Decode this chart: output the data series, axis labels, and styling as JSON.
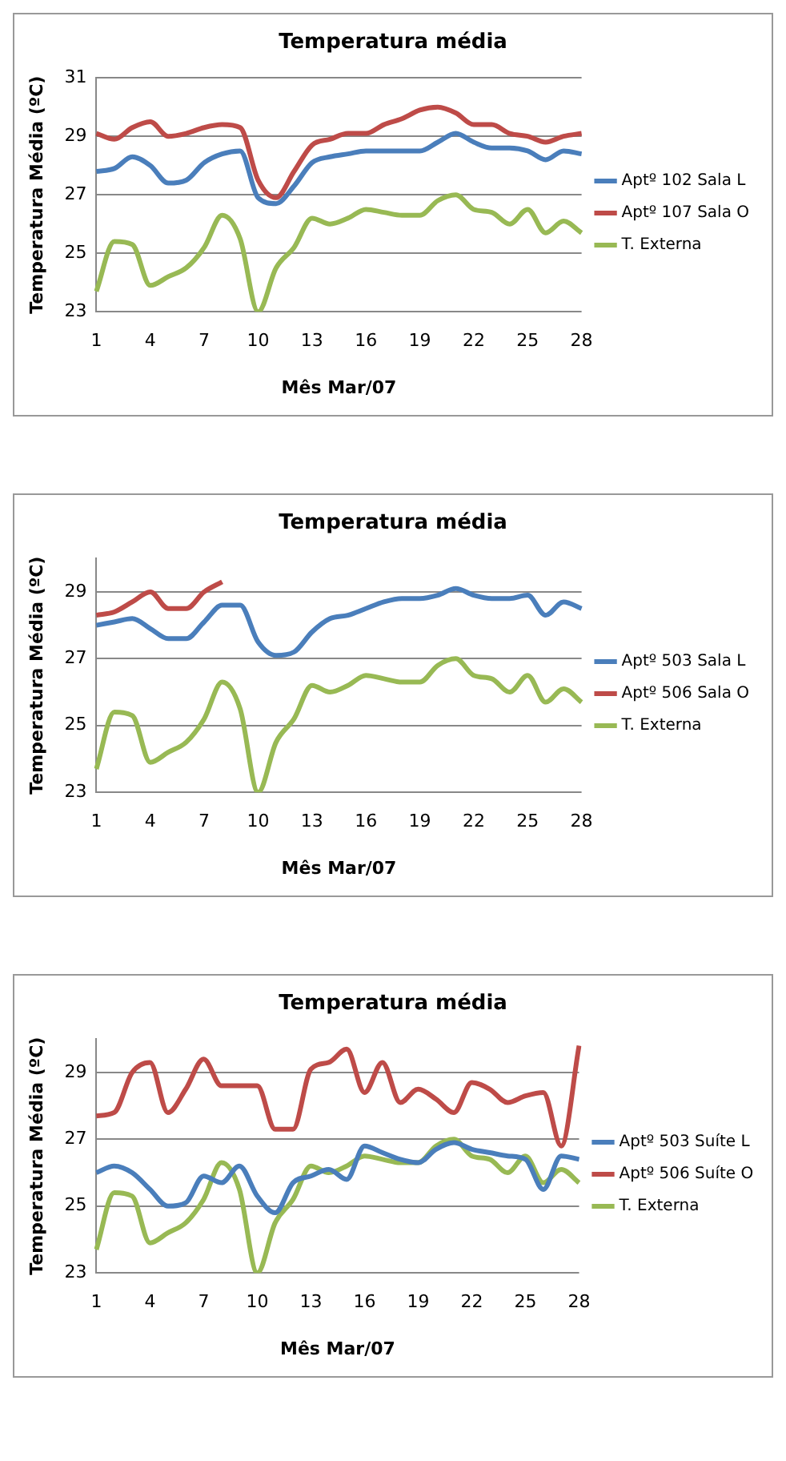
{
  "chart_data": [
    {
      "type": "line",
      "title": "Temperatura média",
      "xlabel": "Mês Mar/07",
      "ylabel": "Temperatura Média (ºC)",
      "categories": [
        "1",
        null,
        null,
        "4",
        null,
        null,
        "7",
        null,
        null,
        "10",
        null,
        null,
        "13",
        null,
        null,
        "16",
        null,
        null,
        "19",
        null,
        null,
        "22",
        null,
        null,
        "25",
        null,
        null,
        "28"
      ],
      "ylim": [
        23,
        31
      ],
      "yticks": [
        23,
        25,
        27,
        29,
        31
      ],
      "grid": "y",
      "legend": "right",
      "marker": "none",
      "series": [
        {
          "name": "Aptº 102 Sala L",
          "color": "#4a7ebb",
          "values": [
            27.8,
            27.9,
            28.3,
            28.0,
            27.4,
            27.5,
            28.1,
            28.4,
            28.5,
            26.9,
            26.7,
            27.3,
            28.1,
            28.3,
            28.4,
            28.5,
            28.5,
            28.5,
            28.5,
            28.8,
            29.1,
            28.8,
            28.6,
            28.6,
            28.5,
            28.2,
            28.5,
            28.4
          ]
        },
        {
          "name": "Aptº 107 Sala O",
          "color": "#be4b48",
          "values": [
            29.1,
            28.9,
            29.3,
            29.5,
            29.0,
            29.1,
            29.3,
            29.4,
            29.3,
            27.5,
            26.9,
            27.8,
            28.7,
            28.9,
            29.1,
            29.1,
            29.4,
            29.6,
            29.9,
            30.0,
            29.8,
            29.4,
            29.4,
            29.1,
            29.0,
            28.8,
            29.0,
            29.1
          ]
        },
        {
          "name": "T. Externa",
          "color": "#98b954",
          "values": [
            23.7,
            25.4,
            25.3,
            23.9,
            24.2,
            24.5,
            25.2,
            26.3,
            25.5,
            23.0,
            24.5,
            25.2,
            26.2,
            26.0,
            26.2,
            26.5,
            26.4,
            26.3,
            26.3,
            26.8,
            27.0,
            26.5,
            26.4,
            26.0,
            26.5,
            25.7,
            26.1,
            25.7
          ]
        }
      ]
    },
    {
      "type": "line",
      "title": "Temperatura média",
      "xlabel": "Mês Mar/07",
      "ylabel": "Temperatura Média (ºC)",
      "categories": [
        "1",
        null,
        null,
        "4",
        null,
        null,
        "7",
        null,
        null,
        "10",
        null,
        null,
        "13",
        null,
        null,
        "16",
        null,
        null,
        "19",
        null,
        null,
        "22",
        null,
        null,
        "25",
        null,
        null,
        "28"
      ],
      "ylim": [
        23,
        30
      ],
      "yticks": [
        23,
        25,
        27,
        29
      ],
      "grid": "y",
      "legend": "right",
      "marker": "none",
      "series": [
        {
          "name": "Aptº 503 Sala L",
          "color": "#4a7ebb",
          "values": [
            28.0,
            28.1,
            28.2,
            27.9,
            27.6,
            27.6,
            28.1,
            28.6,
            28.6,
            27.5,
            27.1,
            27.2,
            27.8,
            28.2,
            28.3,
            28.5,
            28.7,
            28.8,
            28.8,
            28.9,
            29.1,
            28.9,
            28.8,
            28.8,
            28.9,
            28.3,
            28.7,
            28.5
          ]
        },
        {
          "name": "Aptº 506 Sala O",
          "color": "#be4b48",
          "values": [
            28.3,
            28.4,
            28.7,
            29.0,
            28.5,
            28.5,
            29.0,
            29.3,
            null,
            null,
            null,
            null,
            null,
            null,
            null,
            null,
            null,
            null,
            null,
            null,
            null,
            null,
            null,
            null,
            null,
            null,
            null,
            null
          ]
        },
        {
          "name": "T. Externa",
          "color": "#98b954",
          "values": [
            23.7,
            25.4,
            25.3,
            23.9,
            24.2,
            24.5,
            25.2,
            26.3,
            25.5,
            23.0,
            24.5,
            25.2,
            26.2,
            26.0,
            26.2,
            26.5,
            26.4,
            26.3,
            26.3,
            26.8,
            27.0,
            26.5,
            26.4,
            26.0,
            26.5,
            25.7,
            26.1,
            25.7
          ]
        }
      ]
    },
    {
      "type": "line",
      "title": "Temperatura média",
      "xlabel": "Mês Mar/07",
      "ylabel": "Temperatura Média (ºC)",
      "categories": [
        "1",
        null,
        null,
        "4",
        null,
        null,
        "7",
        null,
        null,
        "10",
        null,
        null,
        "13",
        null,
        null,
        "16",
        null,
        null,
        "19",
        null,
        null,
        "22",
        null,
        null,
        "25",
        null,
        null,
        "28"
      ],
      "ylim": [
        23,
        30
      ],
      "yticks": [
        23,
        25,
        27,
        29
      ],
      "grid": "y",
      "legend": "right",
      "marker": "none",
      "series": [
        {
          "name": "Aptº 503 Suíte L",
          "color": "#4a7ebb",
          "values": [
            26.0,
            26.2,
            26.0,
            25.5,
            25.0,
            25.1,
            25.9,
            25.7,
            26.2,
            25.3,
            24.8,
            25.7,
            25.9,
            26.1,
            25.8,
            26.8,
            26.6,
            26.4,
            26.3,
            26.7,
            26.9,
            26.7,
            26.6,
            26.5,
            26.4,
            25.5,
            26.5,
            26.4
          ]
        },
        {
          "name": "Aptº 506 Suíte O",
          "color": "#be4b48",
          "values": [
            27.7,
            27.8,
            29.0,
            29.3,
            27.8,
            28.5,
            29.4,
            28.6,
            28.6,
            28.6,
            27.3,
            27.3,
            29.1,
            29.3,
            29.7,
            28.4,
            29.3,
            28.1,
            28.5,
            28.2,
            27.8,
            28.7,
            28.5,
            28.1,
            28.3,
            28.4,
            26.8,
            29.8
          ]
        },
        {
          "name": "T. Externa",
          "color": "#98b954",
          "values": [
            23.7,
            25.4,
            25.3,
            23.9,
            24.2,
            24.5,
            25.2,
            26.3,
            25.5,
            23.0,
            24.5,
            25.2,
            26.2,
            26.0,
            26.2,
            26.5,
            26.4,
            26.3,
            26.3,
            26.8,
            27.0,
            26.5,
            26.4,
            26.0,
            26.5,
            25.7,
            26.1,
            25.7
          ]
        }
      ]
    }
  ]
}
